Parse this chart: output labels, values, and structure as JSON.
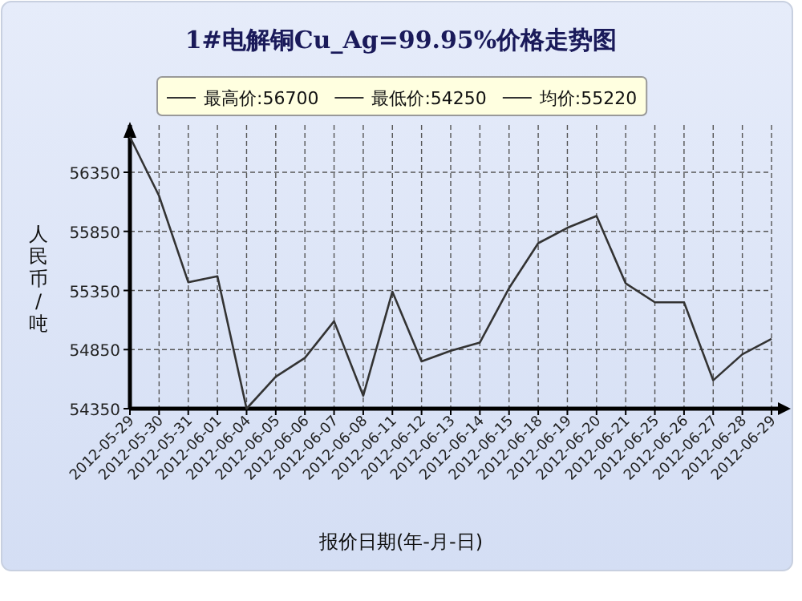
{
  "chart_data": {
    "type": "line",
    "title": "1#电解铜Cu_Ag=99.95%价格走势图",
    "xlabel": "报价日期(年-月-日)",
    "ylabel": "人民币/吨",
    "annotations": [
      "最高价:56700",
      "最低价:54250",
      "均价:55220"
    ],
    "categories": [
      "2012-05-29",
      "2012-05-30",
      "2012-05-31",
      "2012-06-01",
      "2012-06-04",
      "2012-06-05",
      "2012-06-06",
      "2012-06-07",
      "2012-06-08",
      "2012-06-11",
      "2012-06-12",
      "2012-06-13",
      "2012-06-14",
      "2012-06-15",
      "2012-06-18",
      "2012-06-19",
      "2012-06-20",
      "2012-06-21",
      "2012-06-25",
      "2012-06-26",
      "2012-06-27",
      "2012-06-28",
      "2012-06-29"
    ],
    "series": [
      {
        "color": "#333333",
        "values": [
          56650,
          56150,
          55420,
          55470,
          54350,
          54620,
          54780,
          55090,
          54460,
          55340,
          54750,
          54840,
          54910,
          55370,
          55750,
          55880,
          55980,
          55410,
          55250,
          55250,
          54590,
          54810,
          54940
        ]
      }
    ],
    "ylim": [
      54350,
      56750
    ],
    "yticks": [
      54350,
      54850,
      55350,
      55850,
      56350
    ],
    "grid": true,
    "marker": "none",
    "line_style": "solid"
  }
}
